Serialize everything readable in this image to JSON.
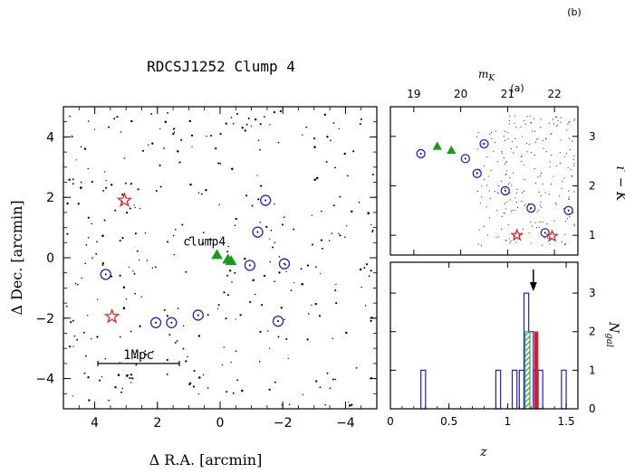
{
  "panel_tag": "(b)",
  "inset_tag": "(a)",
  "chart_data": [
    {
      "type": "scatter",
      "panel": "sky-map",
      "title": "RDCSJ1252 Clump 4",
      "xlabel": "Δ R.A. [arcmin]",
      "ylabel": "Δ Dec. [arcmin]",
      "xlim": [
        5,
        -5
      ],
      "ylim": [
        -5,
        5
      ],
      "x_reversed": true,
      "xticks": [
        4,
        2,
        0,
        -2,
        -4
      ],
      "xtick_labels": [
        "4",
        "2",
        "0",
        "−2",
        "−4"
      ],
      "yticks": [
        -4,
        -2,
        0,
        2,
        4
      ],
      "ytick_labels": [
        "−4",
        "−2",
        "0",
        "2",
        "4"
      ],
      "annotations": {
        "clump_label": "clump4",
        "clump_label_pos": [
          0.5,
          0.4
        ],
        "scale_bar_label": "1Mpc",
        "scale_bar_x": [
          3.9,
          1.3
        ],
        "scale_bar_y": -3.5
      },
      "series": [
        {
          "marker": "open-circle",
          "color": "#1f1fd6",
          "points": [
            [
              3.65,
              -0.55
            ],
            [
              2.05,
              -2.15
            ],
            [
              1.55,
              -2.15
            ],
            [
              0.7,
              -1.9
            ],
            [
              -0.95,
              -0.25
            ],
            [
              -1.2,
              0.85
            ],
            [
              -1.45,
              1.9
            ],
            [
              -2.05,
              -0.2
            ],
            [
              -1.85,
              -2.1
            ]
          ]
        },
        {
          "marker": "open-star",
          "color": "#e01b1b",
          "points": [
            [
              3.05,
              1.9
            ],
            [
              3.45,
              -1.95
            ]
          ]
        },
        {
          "marker": "filled-triangle",
          "color": "#1a9a1a",
          "points": [
            [
              0.1,
              0.1
            ],
            [
              -0.25,
              -0.05
            ],
            [
              -0.35,
              -0.1
            ]
          ]
        }
      ]
    },
    {
      "type": "scatter",
      "panel": "colour-magnitude",
      "ylabel": "i′ − K",
      "top_axis_label": "m_K",
      "top_axis_label_base": "m",
      "top_axis_label_sub": "K",
      "xlim": [
        18.5,
        22.5
      ],
      "ylim": [
        0.6,
        3.6
      ],
      "xticks": [
        19,
        20,
        21,
        22
      ],
      "xtick_labels": [
        "19",
        "20",
        "21",
        "22"
      ],
      "yticks": [
        1,
        2,
        3
      ],
      "ytick_labels": [
        "1",
        "2",
        "3"
      ],
      "series": [
        {
          "marker": "open-circle",
          "color": "#1f1fd6",
          "points": [
            [
              19.15,
              2.65
            ],
            [
              20.1,
              2.55
            ],
            [
              20.5,
              2.85
            ],
            [
              20.35,
              2.25
            ],
            [
              20.95,
              1.9
            ],
            [
              21.5,
              1.55
            ],
            [
              21.8,
              1.05
            ],
            [
              22.3,
              1.5
            ]
          ]
        },
        {
          "marker": "open-star",
          "color": "#e01b1b",
          "points": [
            [
              21.2,
              1.0
            ],
            [
              21.95,
              0.98
            ]
          ]
        },
        {
          "marker": "filled-triangle",
          "color": "#1a9a1a",
          "points": [
            [
              19.5,
              2.8
            ],
            [
              19.8,
              2.72
            ]
          ]
        }
      ]
    },
    {
      "type": "bar",
      "panel": "redshift-histogram",
      "xlabel": "z",
      "ylabel": "N_gal",
      "ylabel_base": "N",
      "ylabel_sub": "gal",
      "xlim": [
        0,
        1.6
      ],
      "ylim": [
        0,
        3.8
      ],
      "xticks": [
        0,
        0.5,
        1,
        1.5
      ],
      "xtick_labels": [
        "0",
        "0.5",
        "1",
        "1.5"
      ],
      "yticks": [
        0,
        1,
        2,
        3
      ],
      "ytick_labels": [
        "0",
        "1",
        "2",
        "3"
      ],
      "arrow_z": 1.22,
      "series": [
        {
          "name": "",
          "style": "open-blue",
          "color": "#1f1fd6",
          "bins": [
            [
              0.26,
              0.3,
              1
            ],
            [
              0.9,
              0.94,
              1
            ],
            [
              1.04,
              1.08,
              1
            ],
            [
              1.1,
              1.14,
              1
            ],
            [
              1.14,
              1.18,
              3
            ],
            [
              1.18,
              1.22,
              2
            ],
            [
              1.22,
              1.26,
              1
            ],
            [
              1.26,
              1.3,
              1
            ],
            [
              1.46,
              1.5,
              1
            ]
          ]
        },
        {
          "name": "",
          "style": "hatched-green",
          "color": "#1a9a1a",
          "bins": [
            [
              1.15,
              1.19,
              2
            ]
          ]
        },
        {
          "name": "",
          "style": "filled-red",
          "color": "#e01b1b",
          "bins": [
            [
              1.23,
              1.26,
              2
            ]
          ]
        }
      ]
    }
  ]
}
